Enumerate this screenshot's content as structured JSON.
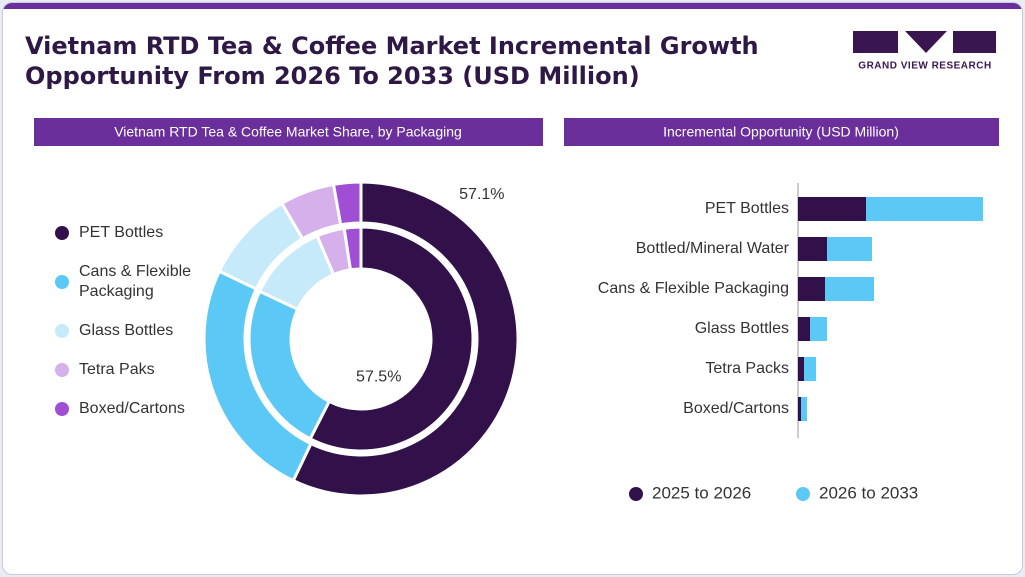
{
  "header": {
    "title": "Vietnam RTD Tea & Coffee Market Incremental Growth Opportunity From 2026 To 2033 (USD Million)",
    "logo": "GRAND VIEW RESEARCH"
  },
  "chart_data": [
    {
      "type": "donut",
      "title": "Vietnam RTD Tea & Coffee Market Share, by Packaging",
      "categories": [
        "PET Bottles",
        "Cans & Flexible Packaging",
        "Glass Bottles",
        "Tetra Paks",
        "Boxed/Cartons"
      ],
      "colors": [
        "#32104a",
        "#5bc8f5",
        "#c6eaf9",
        "#d6b0ea",
        "#a04fd4"
      ],
      "series": [
        {
          "values": [
            57.1,
            25,
            9.5,
            5.6,
            2.8
          ],
          "value_labels": [
            "57.1%",
            null,
            null,
            null,
            null
          ]
        },
        {
          "values": [
            57.5,
            24.5,
            11.6,
            4,
            2.4
          ],
          "value_labels": [
            "57.5%",
            null,
            null,
            null,
            null
          ]
        }
      ]
    },
    {
      "type": "bar",
      "orientation": "horizontal",
      "stacked": true,
      "title": "Incremental Opportunity (USD Million)",
      "categories": [
        "PET Bottles",
        "Bottled/Mineral Water",
        "Cans & Flexible Packaging",
        "Glass Bottles",
        "Tetra Packs",
        "Boxed/Cartons"
      ],
      "xlim": [
        0,
        200
      ],
      "series": [
        {
          "name": "2025 to 2026",
          "color": "#32104a",
          "values": [
            68,
            29,
            27,
            12,
            6,
            3
          ]
        },
        {
          "name": "2026 to 2033",
          "color": "#5bc8f5",
          "values": [
            117,
            45,
            49,
            17,
            12,
            6
          ]
        }
      ]
    }
  ]
}
